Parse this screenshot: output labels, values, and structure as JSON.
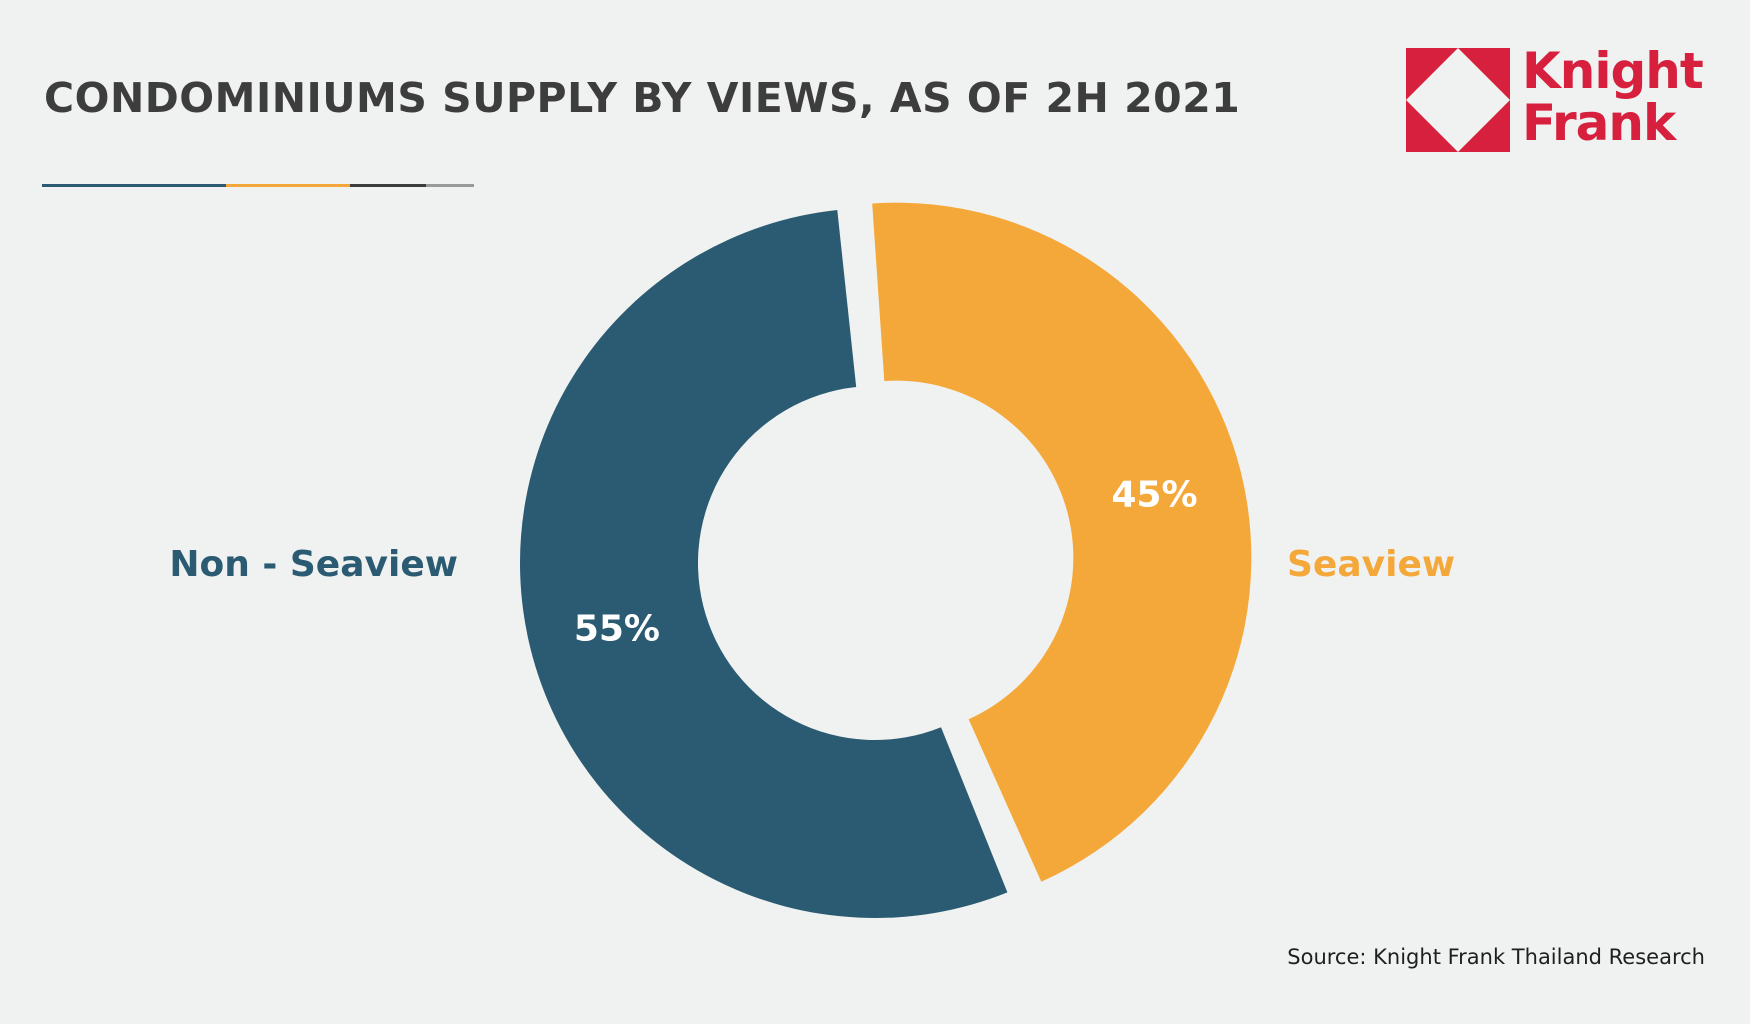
{
  "title": "CONDOMINIUMS SUPPLY BY VIEWS, AS OF 2H 2021",
  "logo": {
    "line1": "Knight",
    "line2": "Frank",
    "color": "#d7203d"
  },
  "accent_colors": [
    "#2b5b72",
    "#f5a83a",
    "#3d3d3d",
    "#9a9a9a"
  ],
  "chart_data": {
    "type": "pie",
    "title": "CONDOMINIUMS SUPPLY BY VIEWS, AS OF 2H 2021",
    "variant": "donut",
    "labels": [
      "Non - Seaview",
      "Seaview"
    ],
    "values": [
      55,
      45
    ],
    "value_labels": [
      "55%",
      "45%"
    ],
    "colors": [
      "#2b5b72",
      "#f5a83a"
    ],
    "exploded": "Seaview",
    "legend": "none"
  },
  "source": "Source: Knight Frank Thailand Research"
}
